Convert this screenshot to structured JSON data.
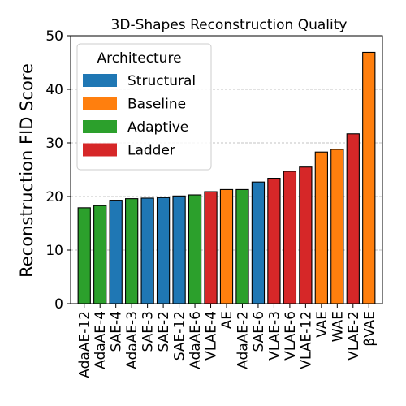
{
  "chart_data": {
    "type": "bar",
    "title": "3D-Shapes Reconstruction Quality",
    "xlabel": "",
    "ylabel": "Reconstruction FID Score",
    "ylim": [
      0,
      50
    ],
    "yticks": [
      0,
      10,
      20,
      30,
      40,
      50
    ],
    "grid": "y-dashed",
    "legend": {
      "title": "Architecture",
      "placement": "top-left",
      "entries": [
        {
          "label": "Structural",
          "color": "#1f77b4"
        },
        {
          "label": "Baseline",
          "color": "#ff7f0e"
        },
        {
          "label": "Adaptive",
          "color": "#2ca02c"
        },
        {
          "label": "Ladder",
          "color": "#d62728"
        }
      ]
    },
    "categories": [
      "AdaAE-12",
      "AdaAE-4",
      "SAE-4",
      "AdaAE-3",
      "SAE-3",
      "SAE-2",
      "SAE-12",
      "AdaAE-6",
      "VLAE-4",
      "AE",
      "AdaAE-2",
      "SAE-6",
      "VLAE-3",
      "VLAE-6",
      "VLAE-12",
      "VAE",
      "WAE",
      "VLAE-2",
      "βVAE"
    ],
    "values": [
      17.9,
      18.3,
      19.3,
      19.6,
      19.7,
      19.8,
      20.1,
      20.3,
      20.9,
      21.3,
      21.3,
      22.7,
      23.4,
      24.7,
      25.5,
      28.3,
      28.8,
      31.7,
      46.9
    ],
    "groups": [
      "Adaptive",
      "Adaptive",
      "Structural",
      "Adaptive",
      "Structural",
      "Structural",
      "Structural",
      "Adaptive",
      "Ladder",
      "Baseline",
      "Adaptive",
      "Structural",
      "Ladder",
      "Ladder",
      "Ladder",
      "Baseline",
      "Baseline",
      "Ladder",
      "Baseline"
    ]
  }
}
